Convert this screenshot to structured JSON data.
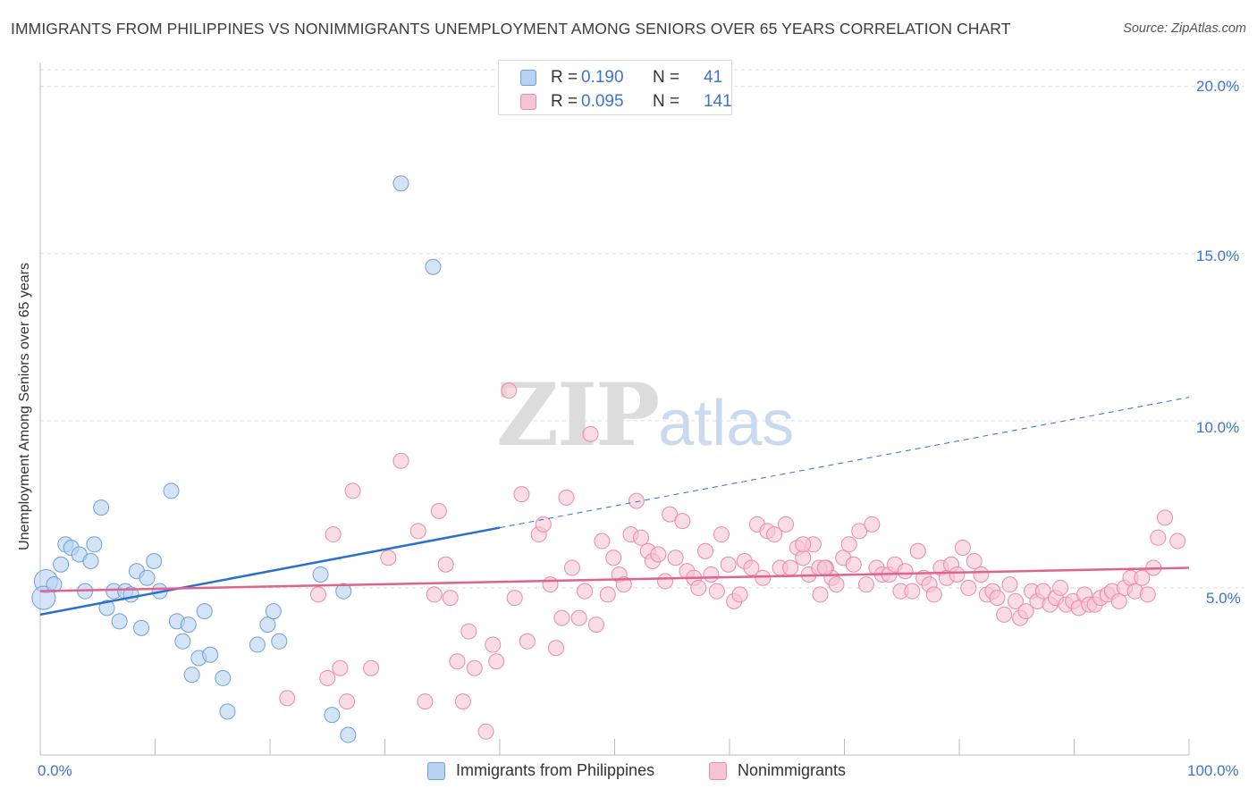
{
  "title": "IMMIGRANTS FROM PHILIPPINES VS NONIMMIGRANTS UNEMPLOYMENT AMONG SENIORS OVER 65 YEARS CORRELATION CHART",
  "source": "Source: ZipAtlas.com",
  "watermark": {
    "zip": "ZIP",
    "atlas": "atlas"
  },
  "legend_top": {
    "series1": {
      "r_label": "R =",
      "r_value": "0.190",
      "n_label": "N =",
      "n_value": "41"
    },
    "series2": {
      "r_label": "R =",
      "r_value": "0.095",
      "n_label": "N =",
      "n_value": "141"
    }
  },
  "legend_bottom": {
    "series1": "Immigrants from Philippines",
    "series2": "Nonimmigrants"
  },
  "axis_labels": {
    "y": "Unemployment Among Seniors over 65 years",
    "x_min": "0.0%",
    "x_max": "100.0%",
    "y_ticks": [
      "5.0%",
      "10.0%",
      "15.0%",
      "20.0%"
    ]
  },
  "colors": {
    "blue_fill": "#b8d2f2",
    "blue_stroke": "#6f9fd8",
    "blue_line": "#2a6fd0",
    "pink_fill": "#f7c4d3",
    "pink_stroke": "#e98aa8",
    "pink_line": "#e0628f",
    "tick_text": "#3b74c9",
    "grid": "#dcdcdc"
  },
  "chart_data": {
    "type": "scatter",
    "xlim": [
      0,
      100
    ],
    "ylim": [
      0,
      20.5
    ],
    "y_ticks": [
      5,
      10,
      15,
      20
    ],
    "grid": "horizontal dashed",
    "series": [
      {
        "name": "Immigrants from Philippines",
        "color": "#b8d2f2",
        "trend": {
          "x0": 0,
          "y0": 4.2,
          "x1": 40,
          "y1": 6.8,
          "extrapolate_to": 100,
          "extrapolate_y": 10.7
        },
        "points": [
          [
            0.5,
            5.2
          ],
          [
            0.3,
            4.7
          ],
          [
            1.2,
            5.1
          ],
          [
            1.8,
            5.7
          ],
          [
            2.2,
            6.3
          ],
          [
            2.7,
            6.2
          ],
          [
            3.4,
            6.0
          ],
          [
            3.9,
            4.9
          ],
          [
            4.4,
            5.8
          ],
          [
            4.7,
            6.3
          ],
          [
            5.3,
            7.4
          ],
          [
            5.8,
            4.4
          ],
          [
            6.4,
            4.9
          ],
          [
            6.9,
            4.0
          ],
          [
            7.4,
            4.9
          ],
          [
            7.9,
            4.8
          ],
          [
            8.4,
            5.5
          ],
          [
            8.8,
            3.8
          ],
          [
            9.3,
            5.3
          ],
          [
            9.9,
            5.8
          ],
          [
            10.4,
            4.9
          ],
          [
            11.4,
            7.9
          ],
          [
            11.9,
            4.0
          ],
          [
            12.4,
            3.4
          ],
          [
            12.9,
            3.9
          ],
          [
            13.2,
            2.4
          ],
          [
            13.8,
            2.9
          ],
          [
            14.3,
            4.3
          ],
          [
            14.8,
            3.0
          ],
          [
            15.9,
            2.3
          ],
          [
            16.3,
            1.3
          ],
          [
            18.9,
            3.3
          ],
          [
            19.8,
            3.9
          ],
          [
            20.3,
            4.3
          ],
          [
            20.8,
            3.4
          ],
          [
            24.4,
            5.4
          ],
          [
            25.4,
            1.2
          ],
          [
            26.4,
            4.9
          ],
          [
            26.8,
            0.6
          ],
          [
            31.4,
            17.1
          ],
          [
            34.2,
            14.6
          ]
        ]
      },
      {
        "name": "Nonimmigrants",
        "color": "#f7c4d3",
        "trend": {
          "x0": 0,
          "y0": 4.9,
          "x1": 100,
          "y1": 5.6
        },
        "points": [
          [
            21.5,
            1.7
          ],
          [
            24.2,
            4.8
          ],
          [
            25.0,
            2.3
          ],
          [
            25.5,
            6.6
          ],
          [
            26.1,
            2.6
          ],
          [
            26.7,
            1.6
          ],
          [
            27.2,
            7.9
          ],
          [
            28.8,
            2.6
          ],
          [
            30.3,
            5.9
          ],
          [
            31.4,
            8.8
          ],
          [
            32.9,
            6.7
          ],
          [
            33.5,
            1.6
          ],
          [
            34.3,
            4.8
          ],
          [
            34.7,
            7.3
          ],
          [
            35.3,
            5.7
          ],
          [
            35.7,
            4.7
          ],
          [
            36.3,
            2.8
          ],
          [
            36.8,
            1.6
          ],
          [
            37.3,
            3.7
          ],
          [
            37.8,
            2.6
          ],
          [
            38.8,
            0.7
          ],
          [
            39.4,
            3.3
          ],
          [
            39.7,
            2.8
          ],
          [
            40.8,
            10.9
          ],
          [
            41.3,
            4.7
          ],
          [
            41.9,
            7.8
          ],
          [
            42.4,
            3.4
          ],
          [
            43.4,
            6.6
          ],
          [
            43.8,
            6.9
          ],
          [
            44.4,
            5.1
          ],
          [
            44.9,
            3.2
          ],
          [
            45.4,
            4.1
          ],
          [
            45.8,
            7.7
          ],
          [
            46.3,
            5.6
          ],
          [
            46.9,
            4.1
          ],
          [
            47.4,
            4.9
          ],
          [
            47.9,
            9.6
          ],
          [
            48.4,
            3.9
          ],
          [
            48.9,
            6.4
          ],
          [
            49.4,
            4.8
          ],
          [
            49.9,
            5.9
          ],
          [
            50.4,
            5.4
          ],
          [
            50.8,
            5.1
          ],
          [
            51.4,
            6.6
          ],
          [
            51.9,
            7.6
          ],
          [
            52.3,
            6.5
          ],
          [
            52.9,
            6.1
          ],
          [
            53.3,
            5.8
          ],
          [
            53.8,
            6.0
          ],
          [
            54.4,
            5.2
          ],
          [
            54.8,
            7.2
          ],
          [
            55.3,
            5.9
          ],
          [
            55.9,
            7.0
          ],
          [
            56.3,
            5.5
          ],
          [
            56.9,
            5.3
          ],
          [
            57.3,
            5.0
          ],
          [
            57.9,
            6.1
          ],
          [
            58.4,
            5.4
          ],
          [
            58.9,
            4.9
          ],
          [
            59.3,
            6.6
          ],
          [
            59.9,
            5.7
          ],
          [
            60.4,
            4.6
          ],
          [
            60.9,
            4.8
          ],
          [
            61.3,
            5.8
          ],
          [
            61.9,
            5.6
          ],
          [
            62.4,
            6.9
          ],
          [
            62.9,
            5.3
          ],
          [
            63.3,
            6.7
          ],
          [
            63.9,
            6.6
          ],
          [
            64.4,
            5.6
          ],
          [
            64.9,
            6.9
          ],
          [
            65.3,
            5.6
          ],
          [
            65.9,
            6.2
          ],
          [
            66.4,
            5.9
          ],
          [
            66.9,
            5.4
          ],
          [
            67.3,
            6.3
          ],
          [
            67.9,
            4.8
          ],
          [
            68.4,
            5.6
          ],
          [
            68.9,
            5.3
          ],
          [
            69.3,
            5.1
          ],
          [
            69.9,
            5.9
          ],
          [
            70.4,
            6.3
          ],
          [
            70.8,
            5.7
          ],
          [
            71.3,
            6.7
          ],
          [
            71.9,
            5.1
          ],
          [
            72.4,
            6.9
          ],
          [
            72.8,
            5.6
          ],
          [
            73.3,
            5.4
          ],
          [
            73.9,
            5.4
          ],
          [
            74.4,
            5.7
          ],
          [
            74.9,
            4.9
          ],
          [
            75.3,
            5.5
          ],
          [
            75.9,
            4.9
          ],
          [
            76.4,
            6.1
          ],
          [
            76.9,
            5.3
          ],
          [
            77.4,
            5.1
          ],
          [
            77.8,
            4.8
          ],
          [
            78.4,
            5.6
          ],
          [
            78.9,
            5.3
          ],
          [
            79.3,
            5.7
          ],
          [
            79.8,
            5.4
          ],
          [
            80.3,
            6.2
          ],
          [
            80.8,
            5.0
          ],
          [
            81.3,
            5.8
          ],
          [
            81.9,
            5.4
          ],
          [
            82.4,
            4.8
          ],
          [
            82.9,
            4.9
          ],
          [
            83.3,
            4.7
          ],
          [
            83.9,
            4.2
          ],
          [
            84.4,
            5.1
          ],
          [
            84.9,
            4.6
          ],
          [
            85.3,
            4.1
          ],
          [
            85.8,
            4.3
          ],
          [
            86.3,
            4.9
          ],
          [
            86.8,
            4.6
          ],
          [
            87.3,
            4.9
          ],
          [
            87.9,
            4.5
          ],
          [
            88.4,
            4.7
          ],
          [
            88.8,
            5.0
          ],
          [
            89.3,
            4.5
          ],
          [
            89.9,
            4.6
          ],
          [
            90.4,
            4.4
          ],
          [
            90.9,
            4.8
          ],
          [
            91.3,
            4.5
          ],
          [
            91.8,
            4.5
          ],
          [
            92.3,
            4.7
          ],
          [
            92.9,
            4.8
          ],
          [
            93.3,
            4.9
          ],
          [
            93.9,
            4.6
          ],
          [
            94.4,
            5.0
          ],
          [
            94.9,
            5.3
          ],
          [
            95.3,
            4.9
          ],
          [
            95.9,
            5.3
          ],
          [
            96.4,
            4.8
          ],
          [
            96.9,
            5.6
          ],
          [
            97.3,
            6.5
          ],
          [
            97.9,
            7.1
          ],
          [
            99.0,
            6.4
          ],
          [
            66.4,
            6.3
          ],
          [
            67.8,
            5.6
          ],
          [
            68.3,
            5.6
          ]
        ]
      }
    ]
  }
}
